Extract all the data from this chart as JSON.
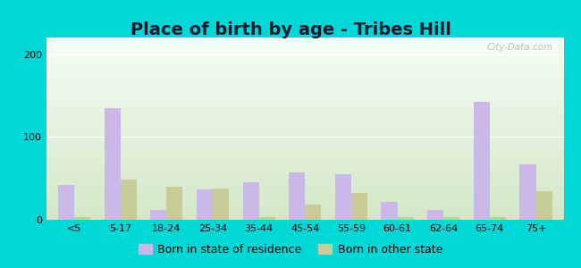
{
  "title": "Place of birth by age - Tribes Hill",
  "categories": [
    "<5",
    "5-17",
    "18-24",
    "25-34",
    "35-44",
    "45-54",
    "55-59",
    "60-61",
    "62-64",
    "65-74",
    "75+"
  ],
  "born_in_state": [
    42,
    135,
    12,
    37,
    45,
    57,
    55,
    22,
    12,
    142,
    67
  ],
  "born_other_state": [
    3,
    48,
    40,
    38,
    3,
    18,
    32,
    3,
    3,
    3,
    35
  ],
  "bar_color_state": "#c9b8e8",
  "bar_color_other": "#c8cc99",
  "ylim": [
    0,
    220
  ],
  "yticks": [
    0,
    100,
    200
  ],
  "background_color_outer": "#00d8d8",
  "background_color_inner_top": "#f5fdf5",
  "background_color_inner_bottom": "#d4e8c8",
  "legend_label_state": "Born in state of residence",
  "legend_label_other": "Born in other state",
  "title_fontsize": 14,
  "title_color": "#1a1a2e",
  "bar_width": 0.35,
  "tick_fontsize": 8,
  "legend_fontsize": 9
}
